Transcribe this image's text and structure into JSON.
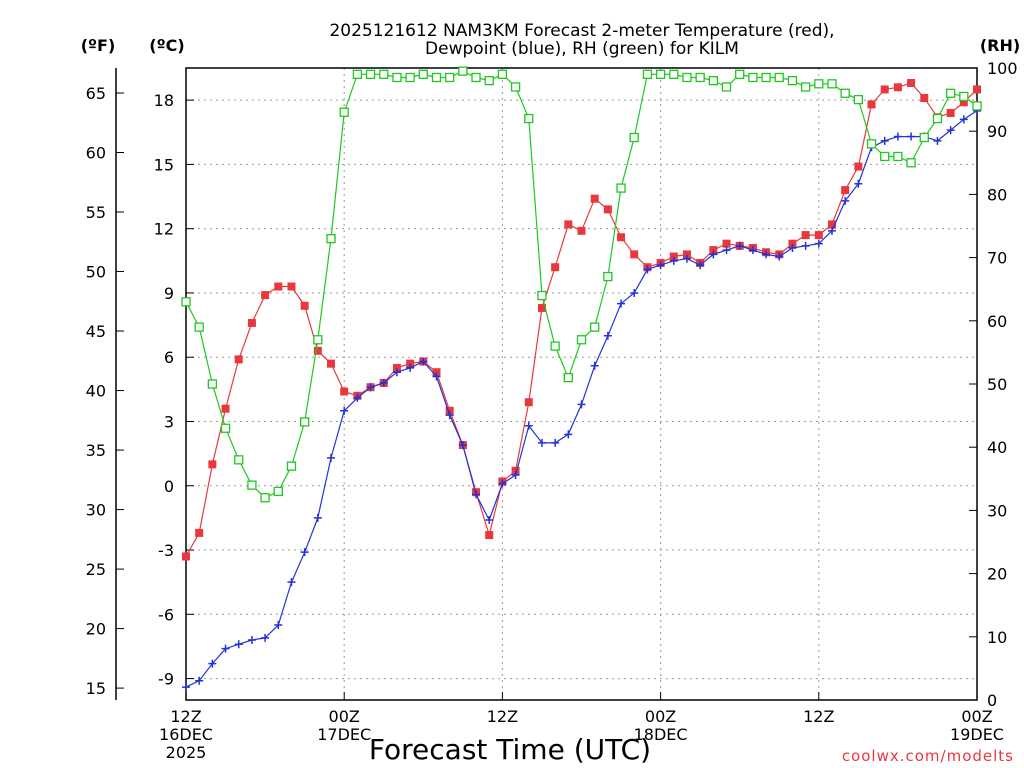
{
  "chart_data": {
    "type": "line",
    "title_lines": [
      "2025121612 NAM3KM Forecast 2-meter Temperature (red),",
      "Dewpoint (blue), RH (green) for KILM"
    ],
    "xlabel": "Forecast Time (UTC)",
    "credit": "coolwx.com/modelts",
    "unit_f_label": "(ºF)",
    "unit_c_label": "(ºC)",
    "unit_rh_label": "(RH)",
    "x_range_hours": [
      0,
      36
    ],
    "c_range": [
      -10.0,
      19.5
    ],
    "f_range": [
      14.0,
      67.1
    ],
    "rh_range": [
      0,
      100
    ],
    "c_ticks": [
      "-9",
      "-6",
      "-3",
      "0",
      "3",
      "6",
      "9",
      "12",
      "15",
      "18"
    ],
    "f_ticks": [
      "15",
      "20",
      "25",
      "30",
      "35",
      "40",
      "45",
      "50",
      "55",
      "60",
      "65"
    ],
    "rh_ticks": [
      "0",
      "10",
      "20",
      "30",
      "40",
      "50",
      "60",
      "70",
      "80",
      "90",
      "100"
    ],
    "x_ticks": [
      {
        "hour": 0,
        "lines": [
          "12Z",
          "16DEC",
          "2025"
        ]
      },
      {
        "hour": 7.2,
        "lines": [
          "00Z",
          "17DEC"
        ]
      },
      {
        "hour": 14.4,
        "lines": [
          "12Z"
        ]
      },
      {
        "hour": 21.6,
        "lines": [
          "00Z",
          "18DEC"
        ]
      },
      {
        "hour": 28.8,
        "lines": [
          "12Z"
        ]
      },
      {
        "hour": 36,
        "lines": [
          "00Z",
          "19DEC"
        ]
      }
    ],
    "series": [
      {
        "name": "Temperature",
        "unit": "C",
        "color": "#e8383d",
        "marker": "filled-square",
        "x": [
          0,
          0.6,
          1.2,
          1.8,
          2.4,
          3.0,
          3.6,
          4.2,
          4.8,
          5.4,
          6.0,
          6.6,
          7.2,
          7.8,
          8.4,
          9.0,
          9.6,
          10.2,
          10.8,
          11.4,
          12.0,
          12.6,
          13.2,
          13.8,
          14.4,
          15.0,
          15.6,
          16.2,
          16.8,
          17.4,
          18.0,
          18.6,
          19.2,
          19.8,
          20.4,
          21.0,
          21.6,
          22.2,
          22.8,
          23.4,
          24.0,
          24.6,
          25.2,
          25.8,
          26.4,
          27.0,
          27.6,
          28.2,
          28.8,
          29.4,
          30.0,
          30.6,
          31.2,
          31.8,
          32.4,
          33.0,
          33.6,
          34.2,
          34.8,
          35.4,
          36.0
        ],
        "values": [
          -3.3,
          -2.2,
          1.0,
          3.6,
          5.9,
          7.6,
          8.9,
          9.3,
          9.3,
          8.4,
          6.3,
          5.7,
          4.4,
          4.2,
          4.6,
          4.8,
          5.5,
          5.7,
          5.8,
          5.3,
          3.5,
          1.9,
          -0.3,
          -2.3,
          0.2,
          0.7,
          3.9,
          8.3,
          10.2,
          12.2,
          11.9,
          13.4,
          12.9,
          11.6,
          10.8,
          10.2,
          10.4,
          10.7,
          10.8,
          10.4,
          11.0,
          11.3,
          11.2,
          11.1,
          10.9,
          10.8,
          11.3,
          11.7,
          11.7,
          12.2,
          13.8,
          14.9,
          17.8,
          18.5,
          18.6,
          18.8,
          18.1,
          17.2,
          17.4,
          17.9,
          18.5
        ]
      },
      {
        "name": "Dewpoint",
        "unit": "C",
        "color": "#2233d6",
        "marker": "plus",
        "x": [
          0,
          0.6,
          1.2,
          1.8,
          2.4,
          3.0,
          3.6,
          4.2,
          4.8,
          5.4,
          6.0,
          6.6,
          7.2,
          7.8,
          8.4,
          9.0,
          9.6,
          10.2,
          10.8,
          11.4,
          12.0,
          12.6,
          13.2,
          13.8,
          14.4,
          15.0,
          15.6,
          16.2,
          16.8,
          17.4,
          18.0,
          18.6,
          19.2,
          19.8,
          20.4,
          21.0,
          21.6,
          22.2,
          22.8,
          23.4,
          24.0,
          24.6,
          25.2,
          25.8,
          26.4,
          27.0,
          27.6,
          28.2,
          28.8,
          29.4,
          30.0,
          30.6,
          31.2,
          31.8,
          32.4,
          33.0,
          33.6,
          34.2,
          34.8,
          35.4,
          36.0
        ],
        "values": [
          -9.4,
          -9.1,
          -8.3,
          -7.6,
          -7.4,
          -7.2,
          -7.1,
          -6.5,
          -4.5,
          -3.1,
          -1.5,
          1.3,
          3.5,
          4.1,
          4.6,
          4.8,
          5.3,
          5.5,
          5.8,
          5.1,
          3.3,
          1.9,
          -0.4,
          -1.6,
          0.1,
          0.5,
          2.8,
          2.0,
          2.0,
          2.4,
          3.8,
          5.6,
          7.0,
          8.5,
          9.0,
          10.1,
          10.3,
          10.5,
          10.6,
          10.3,
          10.8,
          11.0,
          11.2,
          11.0,
          10.8,
          10.7,
          11.1,
          11.2,
          11.3,
          11.9,
          13.3,
          14.1,
          15.8,
          16.1,
          16.3,
          16.3,
          16.3,
          16.1,
          16.6,
          17.1,
          17.5
        ]
      },
      {
        "name": "Relative Humidity",
        "unit": "%",
        "color": "#1ec81e",
        "marker": "open-square",
        "x": [
          0,
          0.6,
          1.2,
          1.8,
          2.4,
          3.0,
          3.6,
          4.2,
          4.8,
          5.4,
          6.0,
          6.6,
          7.2,
          7.8,
          8.4,
          9.0,
          9.6,
          10.2,
          10.8,
          11.4,
          12.0,
          12.6,
          13.2,
          13.8,
          14.4,
          15.0,
          15.6,
          16.2,
          16.8,
          17.4,
          18.0,
          18.6,
          19.2,
          19.8,
          20.4,
          21.0,
          21.6,
          22.2,
          22.8,
          23.4,
          24.0,
          24.6,
          25.2,
          25.8,
          26.4,
          27.0,
          27.6,
          28.2,
          28.8,
          29.4,
          30.0,
          30.6,
          31.2,
          31.8,
          32.4,
          33.0,
          33.6,
          34.2,
          34.8,
          35.4,
          36.0
        ],
        "values": [
          63,
          59,
          50,
          43,
          38,
          34,
          32,
          33,
          37,
          44,
          57,
          73,
          93,
          99,
          99,
          99,
          98.5,
          98.5,
          99,
          98.5,
          98.5,
          99.5,
          98.5,
          98,
          99,
          97,
          92,
          64,
          56,
          51,
          57,
          59,
          67,
          81,
          89,
          99,
          99,
          99,
          98.5,
          98.5,
          98,
          97,
          99,
          98.5,
          98.5,
          98.5,
          98,
          97,
          97.5,
          97.5,
          96,
          95,
          88,
          86,
          86,
          85,
          89,
          92,
          96,
          95.5,
          94
        ]
      }
    ]
  }
}
